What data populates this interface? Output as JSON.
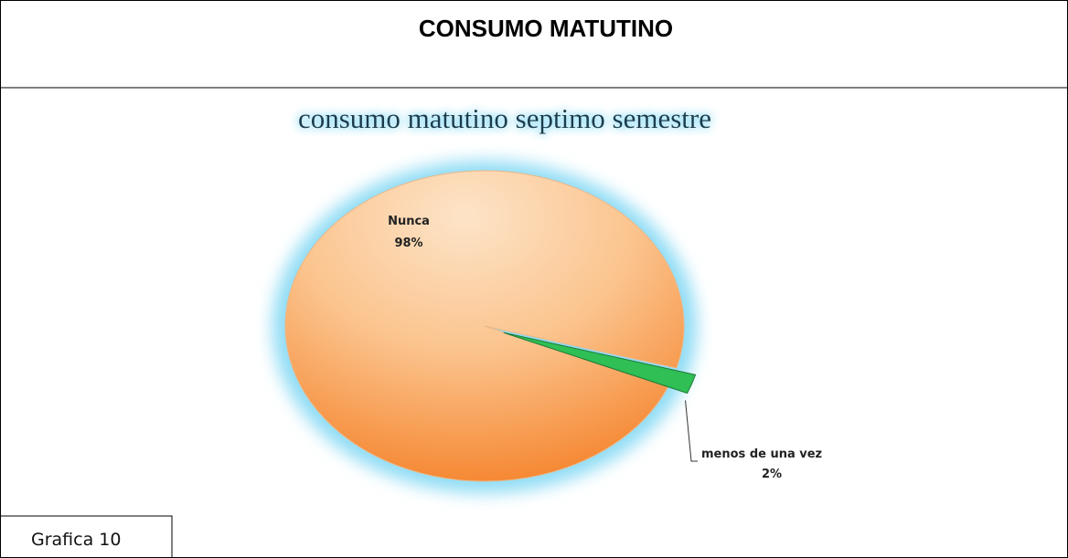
{
  "header": {
    "title": "CONSUMO MATUTINO"
  },
  "chart_data": {
    "type": "pie",
    "title": "consumo matutino septimo semestre",
    "categories": [
      "Nunca",
      "menos de una vez"
    ],
    "values": [
      98,
      2
    ],
    "value_labels": [
      "98%",
      "2%"
    ],
    "colors": [
      "#f8a65c",
      "#2fbf55"
    ]
  },
  "caption": "Grafica 10"
}
